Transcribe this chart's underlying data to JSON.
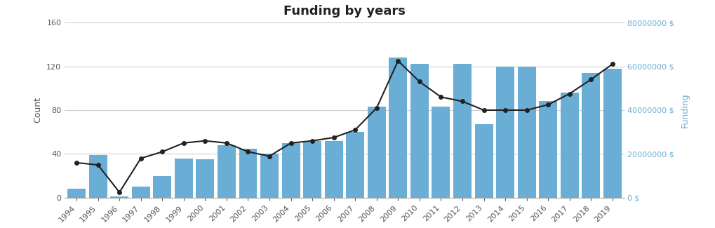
{
  "years": [
    1994,
    1995,
    1996,
    1997,
    1998,
    1999,
    2000,
    2001,
    2002,
    2003,
    2004,
    2005,
    2006,
    2007,
    2008,
    2009,
    2010,
    2011,
    2012,
    2013,
    2014,
    2015,
    2016,
    2017,
    2018,
    2019
  ],
  "bar_values": [
    8,
    39,
    1,
    10,
    20,
    36,
    35,
    48,
    45,
    40,
    50,
    52,
    52,
    60,
    83,
    128,
    122,
    83,
    122,
    67,
    120,
    120,
    88,
    96,
    114,
    118
  ],
  "line_values": [
    32,
    30,
    5,
    36,
    42,
    50,
    52,
    50,
    42,
    38,
    50,
    52,
    55,
    62,
    82,
    125,
    106,
    92,
    88,
    80,
    80,
    80,
    85,
    95,
    108,
    122
  ],
  "bar_color": "#6aaed6",
  "line_color": "#222222",
  "marker_color": "#222222",
  "title": "Funding by years",
  "left_ylabel": "Count",
  "right_ylabel": "Funding",
  "ylim_left": [
    0,
    160
  ],
  "ylim_right": [
    0,
    80000000
  ],
  "left_yticks": [
    0,
    40,
    80,
    120,
    160
  ],
  "right_yticks": [
    0,
    20000000,
    40000000,
    60000000,
    80000000
  ],
  "right_yticklabels": [
    "0 $",
    "20000000 $",
    "40000000 $",
    "60000000 $",
    "80000000 $"
  ],
  "bg_color": "#ffffff",
  "grid_color": "#d0d0d0",
  "title_fontsize": 13,
  "label_fontsize": 9,
  "tick_fontsize": 8
}
